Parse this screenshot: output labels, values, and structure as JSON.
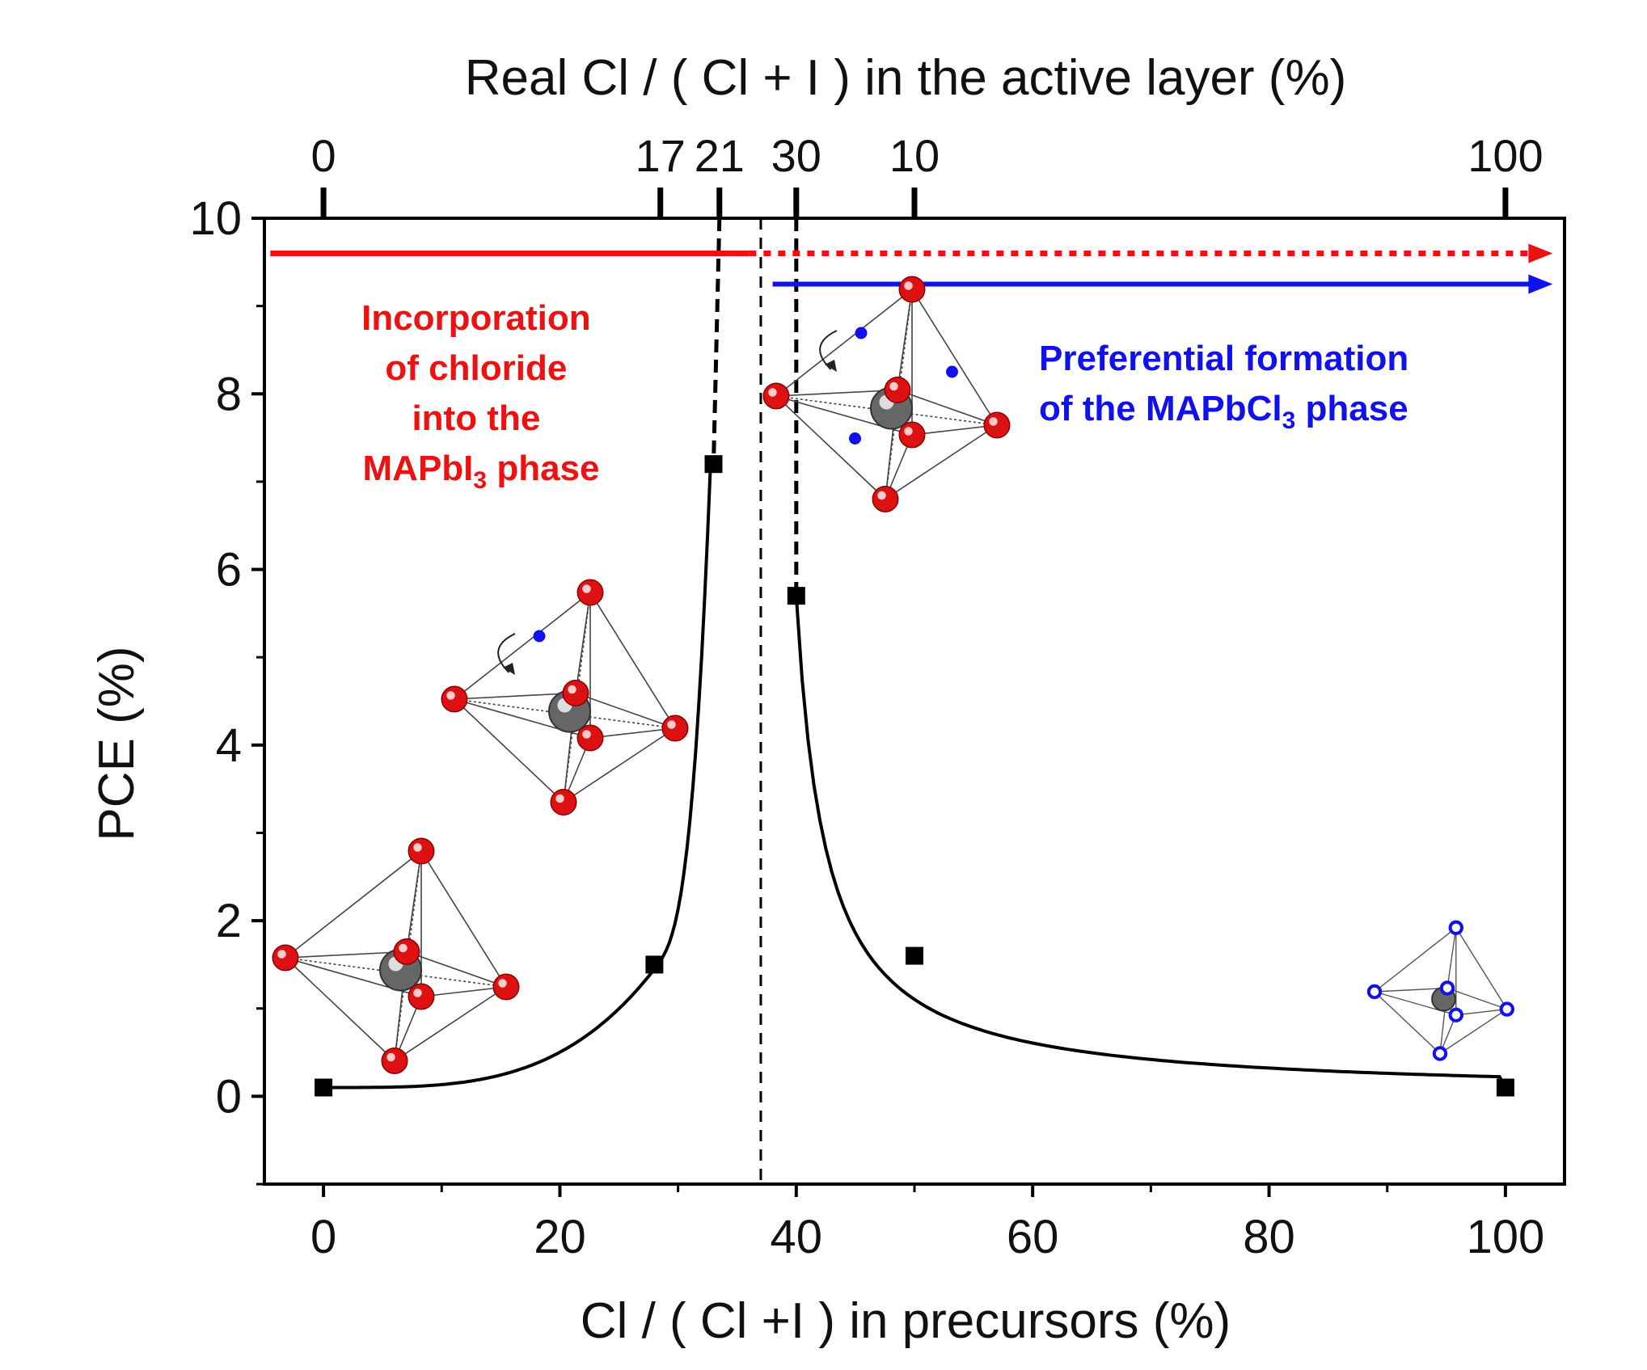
{
  "chart_data": {
    "type": "scatter",
    "title": "",
    "xlabel": "Cl / ( Cl +I ) in precursors (%)",
    "ylabel": "PCE (%)",
    "top_xlabel": "Real Cl / ( Cl + I ) in the active layer (%)",
    "xlim": [
      -5,
      105
    ],
    "ylim": [
      -1,
      10
    ],
    "xticks": [
      0,
      20,
      40,
      60,
      80,
      100
    ],
    "xtick_labels": [
      "0",
      "20",
      "40",
      "60",
      "80",
      "100"
    ],
    "yticks": [
      0,
      2,
      4,
      6,
      8,
      10
    ],
    "ytick_labels": [
      "0",
      "2",
      "4",
      "6",
      "8",
      "10"
    ],
    "top_ticks": [
      {
        "x": 0,
        "label": "0"
      },
      {
        "x": 28.5,
        "label": "17"
      },
      {
        "x": 33.5,
        "label": "21"
      },
      {
        "x": 40,
        "label": "30"
      },
      {
        "x": 50,
        "label": "10"
      },
      {
        "x": 100,
        "label": "100"
      }
    ],
    "series": [
      {
        "name": "PCE",
        "points": [
          {
            "x": 0,
            "y": 0.1
          },
          {
            "x": 28,
            "y": 1.5
          },
          {
            "x": 33,
            "y": 7.2
          },
          {
            "x": 40,
            "y": 5.7
          },
          {
            "x": 50,
            "y": 1.6
          },
          {
            "x": 100,
            "y": 0.1
          }
        ]
      }
    ],
    "divider_x": 37,
    "arrows": [
      {
        "name": "incorporation",
        "color": "#ee1111",
        "solid_from": -4.5,
        "solid_to": 36,
        "dotted_to": 104,
        "y": 9.6
      },
      {
        "name": "mapbcl3",
        "color": "#1111ee",
        "from": 38,
        "to": 104,
        "y": 9.25
      }
    ],
    "annotations": [
      {
        "name": "incorporation-note",
        "color": "#ee1111",
        "lines": [
          "Incorporation",
          "of chloride",
          "into the",
          "MAPbI",
          "3",
          " phase"
        ]
      },
      {
        "name": "formation-note",
        "color": "#1111ee",
        "lines": [
          "Preferential  formation",
          "of the MAPbCl",
          "3",
          " phase"
        ]
      }
    ],
    "colors": {
      "accent_red": "#ee1111",
      "accent_blue": "#1111ee",
      "line": "#000000"
    }
  }
}
